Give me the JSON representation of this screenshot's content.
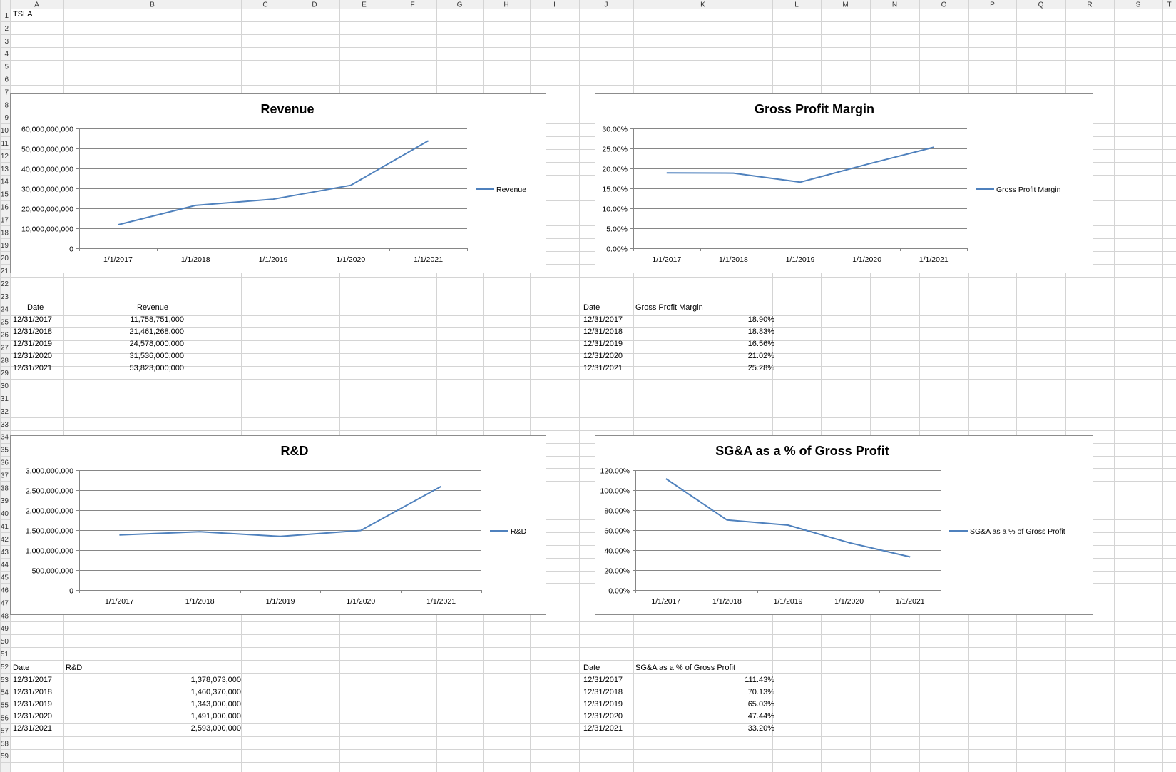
{
  "sheet": {
    "columns": [
      "A",
      "B",
      "C",
      "D",
      "E",
      "F",
      "G",
      "H",
      "I",
      "J",
      "K",
      "L",
      "M",
      "N",
      "O",
      "P",
      "Q",
      "R",
      "S",
      "T"
    ],
    "rows_visible": 59
  },
  "cells": {
    "ticker": "TSLA"
  },
  "tables": [
    {
      "id": "revenue",
      "headers": [
        "Date",
        "Revenue"
      ],
      "rows": [
        [
          "12/31/2017",
          "11,758,751,000"
        ],
        [
          "12/31/2018",
          "21,461,268,000"
        ],
        [
          "12/31/2019",
          "24,578,000,000"
        ],
        [
          "12/31/2020",
          "31,536,000,000"
        ],
        [
          "12/31/2021",
          "53,823,000,000"
        ]
      ]
    },
    {
      "id": "gpm",
      "headers": [
        "Date",
        "Gross Profit Margin"
      ],
      "rows": [
        [
          "12/31/2017",
          "18.90%"
        ],
        [
          "12/31/2018",
          "18.83%"
        ],
        [
          "12/31/2019",
          "16.56%"
        ],
        [
          "12/31/2020",
          "21.02%"
        ],
        [
          "12/31/2021",
          "25.28%"
        ]
      ]
    },
    {
      "id": "rnd",
      "headers": [
        "Date",
        "R&D"
      ],
      "rows": [
        [
          "12/31/2017",
          "1,378,073,000"
        ],
        [
          "12/31/2018",
          "1,460,370,000"
        ],
        [
          "12/31/2019",
          "1,343,000,000"
        ],
        [
          "12/31/2020",
          "1,491,000,000"
        ],
        [
          "12/31/2021",
          "2,593,000,000"
        ]
      ]
    },
    {
      "id": "sga",
      "headers": [
        "Date",
        "SG&A as a % of Gross Profit"
      ],
      "rows": [
        [
          "12/31/2017",
          "111.43%"
        ],
        [
          "12/31/2018",
          "70.13%"
        ],
        [
          "12/31/2019",
          "65.03%"
        ],
        [
          "12/31/2020",
          "47.44%"
        ],
        [
          "12/31/2021",
          "33.20%"
        ]
      ]
    }
  ],
  "chart_data": [
    {
      "type": "line",
      "title": "Revenue",
      "x": [
        "1/1/2017",
        "1/1/2018",
        "1/1/2019",
        "1/1/2020",
        "1/1/2021"
      ],
      "series": [
        {
          "name": "Revenue",
          "values": [
            11758751000,
            21461268000,
            24578000000,
            31536000000,
            53823000000
          ]
        }
      ],
      "ylim": [
        0,
        60000000000
      ],
      "yticks": [
        "0",
        "10,000,000,000",
        "20,000,000,000",
        "30,000,000,000",
        "40,000,000,000",
        "50,000,000,000",
        "60,000,000,000"
      ],
      "grid": true,
      "legend": "right",
      "color": "#4f81bd"
    },
    {
      "type": "line",
      "title": "Gross Profit Margin",
      "x": [
        "1/1/2017",
        "1/1/2018",
        "1/1/2019",
        "1/1/2020",
        "1/1/2021"
      ],
      "series": [
        {
          "name": "Gross Profit Margin",
          "values": [
            18.9,
            18.83,
            16.56,
            21.02,
            25.28
          ]
        }
      ],
      "ylim": [
        0,
        30
      ],
      "yticks": [
        "0.00%",
        "5.00%",
        "10.00%",
        "15.00%",
        "20.00%",
        "25.00%",
        "30.00%"
      ],
      "grid": true,
      "legend": "right",
      "color": "#4f81bd"
    },
    {
      "type": "line",
      "title": "R&D",
      "x": [
        "1/1/2017",
        "1/1/2018",
        "1/1/2019",
        "1/1/2020",
        "1/1/2021"
      ],
      "series": [
        {
          "name": "R&D",
          "values": [
            1378073000,
            1460370000,
            1343000000,
            1491000000,
            2593000000
          ]
        }
      ],
      "ylim": [
        0,
        3000000000
      ],
      "yticks": [
        "0",
        "500,000,000",
        "1,000,000,000",
        "1,500,000,000",
        "2,000,000,000",
        "2,500,000,000",
        "3,000,000,000"
      ],
      "grid": true,
      "legend": "right",
      "color": "#4f81bd"
    },
    {
      "type": "line",
      "title": "SG&A as a % of Gross Profit",
      "x": [
        "1/1/2017",
        "1/1/2018",
        "1/1/2019",
        "1/1/2020",
        "1/1/2021"
      ],
      "series": [
        {
          "name": "SG&A as a % of Gross Profit",
          "values": [
            111.43,
            70.13,
            65.03,
            47.44,
            33.2
          ]
        }
      ],
      "ylim": [
        0,
        120
      ],
      "yticks": [
        "0.00%",
        "20.00%",
        "40.00%",
        "60.00%",
        "80.00%",
        "100.00%",
        "120.00%"
      ],
      "grid": true,
      "legend": "right",
      "color": "#4f81bd"
    }
  ],
  "colors": {
    "gridline": "#d4d4d4",
    "header_bg": "#f0f0f0",
    "header_text": "#333333",
    "series": "#4f81bd"
  }
}
